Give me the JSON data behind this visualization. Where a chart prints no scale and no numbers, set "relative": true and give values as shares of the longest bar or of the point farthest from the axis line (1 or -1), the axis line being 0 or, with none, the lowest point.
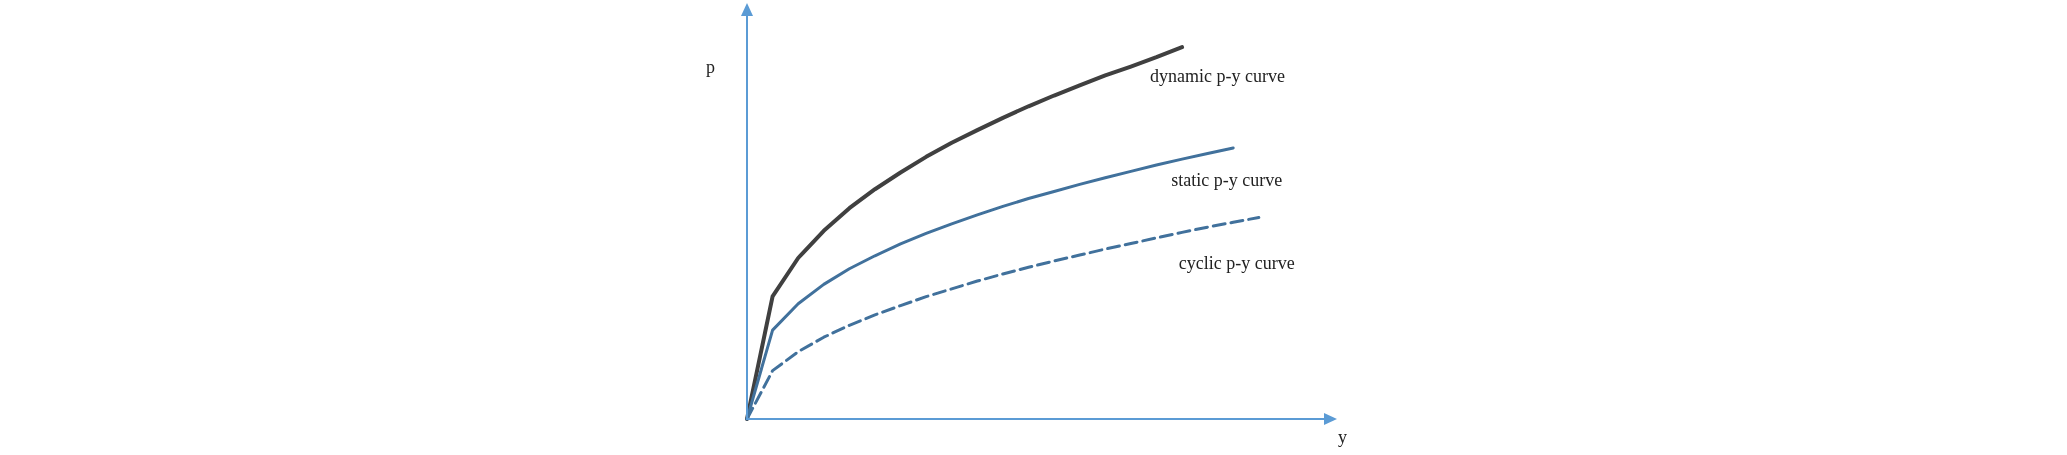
{
  "chart_data": {
    "type": "line",
    "relative": true,
    "xlabel": "y",
    "ylabel": "p",
    "categories": [
      null,
      null,
      null,
      null,
      null,
      null,
      null,
      null,
      null,
      null,
      null,
      null,
      null,
      null,
      null,
      null,
      null,
      null,
      null,
      null,
      null,
      null,
      null
    ],
    "series": [
      {
        "name": "dynamic p-y curve",
        "color": "#404040",
        "line_style": "solid",
        "values": [
          0,
          0.33,
          0.433,
          0.506,
          0.567,
          0.618,
          0.663,
          0.705,
          0.743,
          0.777,
          0.81,
          0.841,
          0.87,
          0.897,
          0.924,
          0.948,
          0.973,
          1.0,
          null,
          null,
          null,
          null,
          null
        ]
      },
      {
        "name": "static p-y curve",
        "color": "#41719c",
        "line_style": "solid",
        "values": [
          0,
          0.239,
          0.31,
          0.362,
          0.404,
          0.439,
          0.471,
          0.499,
          0.525,
          0.549,
          0.572,
          0.593,
          0.612,
          0.631,
          0.649,
          0.666,
          0.683,
          0.699,
          0.714,
          0.729,
          null,
          null,
          null
        ]
      },
      {
        "name": "cyclic p-y curve",
        "color": "#41719c",
        "line_style": "dashed",
        "values": [
          0,
          0.13,
          0.181,
          0.22,
          0.252,
          0.28,
          0.305,
          0.329,
          0.35,
          0.371,
          0.39,
          0.408,
          0.425,
          0.441,
          0.457,
          0.472,
          0.487,
          0.502,
          0.516,
          0.529,
          0.542,
          null,
          null
        ]
      }
    ],
    "legend": false,
    "grid": false,
    "marker": "none"
  }
}
